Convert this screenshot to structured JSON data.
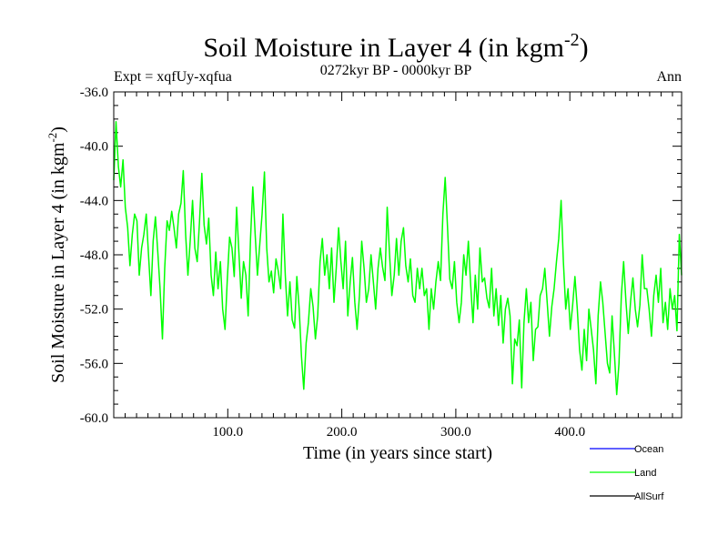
{
  "chart_data": {
    "type": "line",
    "title_main": "Soil Moisture in Layer 4 (in kgm",
    "title_sup": "-2",
    "title_close": ")",
    "subtitle_left": "Expt = xqfUy-xqfua",
    "subtitle_center": "0272kyr BP - 0000kyr BP",
    "subtitle_right": "Ann",
    "xlabel": "Time (in years since start)",
    "ylabel_main": "Soil Moisture in Layer 4 (in kgm",
    "ylabel_sup": "-2",
    "ylabel_close": ")",
    "xlim": [
      0,
      498
    ],
    "ylim": [
      -60.0,
      -36.0
    ],
    "x_ticks": [
      100,
      200,
      300,
      400
    ],
    "x_tick_labels": [
      "100.0",
      "200.0",
      "300.0",
      "400.0"
    ],
    "y_ticks": [
      -36,
      -40,
      -44,
      -48,
      -52,
      -56,
      -60
    ],
    "y_tick_labels": [
      "-36.0",
      "-40.0",
      "-44.0",
      "-48.0",
      "-52.0",
      "-56.0",
      "-60.0"
    ],
    "series": [
      {
        "name": "Ocean",
        "color": "#0000ff",
        "values": []
      },
      {
        "name": "Land",
        "color": "#00ff00",
        "values": [
          -42.5,
          -38.2,
          -41.5,
          -43.0,
          -41.0,
          -44.5,
          -46.0,
          -48.8,
          -46.5,
          -45.0,
          -45.5,
          -49.5,
          -47.5,
          -46.5,
          -45.0,
          -48.0,
          -51.0,
          -47.0,
          -45.2,
          -47.8,
          -50.5,
          -54.2,
          -49.0,
          -45.5,
          -46.2,
          -44.8,
          -46.0,
          -47.5,
          -45.0,
          -44.2,
          -41.8,
          -46.5,
          -49.5,
          -47.0,
          -44.0,
          -47.5,
          -48.5,
          -45.6,
          -42.0,
          -45.8,
          -47.2,
          -45.3,
          -49.5,
          -51.0,
          -47.8,
          -50.5,
          -48.5,
          -52.0,
          -53.5,
          -49.8,
          -46.7,
          -47.5,
          -49.6,
          -44.5,
          -47.8,
          -51.2,
          -48.5,
          -49.5,
          -52.5,
          -46.8,
          -43.0,
          -46.5,
          -49.5,
          -47.2,
          -45.0,
          -41.9,
          -47.5,
          -50.0,
          -49.2,
          -50.8,
          -48.3,
          -49.2,
          -50.5,
          -45.0,
          -49.5,
          -52.5,
          -50.0,
          -52.8,
          -53.4,
          -49.6,
          -52.0,
          -55.5,
          -57.9,
          -54.5,
          -53.0,
          -50.5,
          -51.8,
          -54.2,
          -52.5,
          -48.5,
          -46.8,
          -49.5,
          -48.0,
          -50.5,
          -47.5,
          -51.5,
          -49.0,
          -46.0,
          -48.5,
          -50.5,
          -47.0,
          -52.5,
          -50.0,
          -48.2,
          -51.5,
          -53.5,
          -51.0,
          -47.0,
          -49.0,
          -51.5,
          -50.5,
          -48.0,
          -50.0,
          -52.0,
          -49.0,
          -47.5,
          -48.9,
          -49.9,
          -44.5,
          -48.0,
          -51.0,
          -49.5,
          -46.8,
          -49.5,
          -47.0,
          -46.0,
          -48.8,
          -50.0,
          -48.3,
          -51.0,
          -51.5,
          -49.0,
          -50.5,
          -49.0,
          -51.0,
          -50.5,
          -53.5,
          -50.5,
          -52.0,
          -50.0,
          -48.5,
          -49.9,
          -45.0,
          -42.3,
          -46.0,
          -49.8,
          -50.5,
          -48.5,
          -51.5,
          -53.0,
          -51.5,
          -48.0,
          -49.5,
          -47.0,
          -50.2,
          -53.0,
          -49.5,
          -52.0,
          -47.5,
          -50.0,
          -49.7,
          -51.2,
          -51.9,
          -49.0,
          -52.5,
          -50.5,
          -53.2,
          -51.0,
          -54.5,
          -52.0,
          -51.2,
          -52.5,
          -57.5,
          -54.2,
          -54.7,
          -52.8,
          -57.8,
          -53.0,
          -50.5,
          -53.0,
          -51.5,
          -55.8,
          -53.5,
          -53.3,
          -51.0,
          -50.5,
          -49.0,
          -51.5,
          -54.0,
          -51.8,
          -50.5,
          -48.5,
          -46.8,
          -44.0,
          -48.5,
          -52.0,
          -50.5,
          -53.5,
          -51.7,
          -49.6,
          -52.0,
          -55.0,
          -56.5,
          -53.5,
          -55.8,
          -52.0,
          -53.5,
          -55.0,
          -57.5,
          -52.5,
          -50.0,
          -51.5,
          -53.8,
          -56.0,
          -56.7,
          -52.5,
          -55.2,
          -58.3,
          -56.0,
          -51.0,
          -48.5,
          -51.5,
          -53.8,
          -51.4,
          -49.7,
          -52.0,
          -53.3,
          -51.7,
          -48.0,
          -50.5,
          -50.5,
          -52.0,
          -54.0,
          -51.0,
          -49.5,
          -51.5,
          -49.0,
          -53.0,
          -51.5,
          -53.5,
          -50.5,
          -52.0,
          -51.0,
          -53.6,
          -46.5,
          -49.5
        ]
      },
      {
        "name": "AllSurf",
        "color": "#000000",
        "values": []
      }
    ],
    "grid": false,
    "legend_position": "bottom-right"
  }
}
